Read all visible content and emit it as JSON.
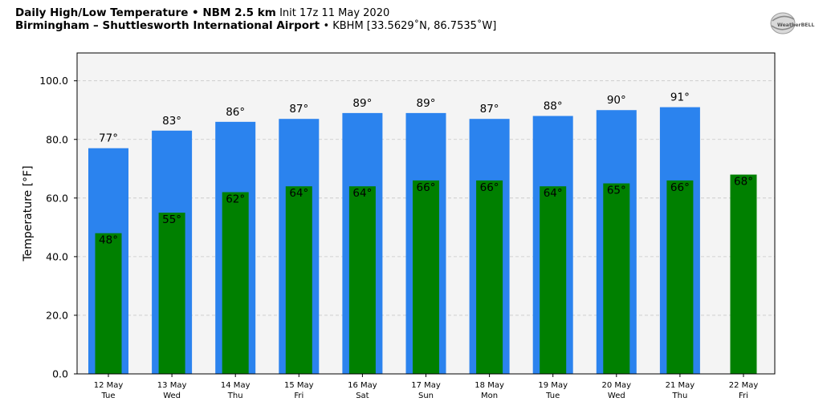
{
  "header": {
    "line1_bold": "Daily High/Low Temperature • NBM 2.5 km",
    "line1_rest": "Init 17z 11 May 2020",
    "line2_bold": "Birmingham – Shuttlesworth International Airport",
    "line2_rest": "• KBHM [33.5629˚N, 86.7535˚W]"
  },
  "logo": {
    "text": "WeatherBELL",
    "icon": "globe-swirl-icon"
  },
  "colors": {
    "high": "#2b83ee",
    "low": "#008000",
    "plot_bg": "#f4f4f4",
    "grid": "#c8c8c8"
  },
  "chart_data": {
    "type": "bar",
    "ylabel": "Temperature [°F]",
    "ylim": [
      0,
      109.5
    ],
    "yticks": [
      "0.0",
      "20.0",
      "40.0",
      "60.0",
      "80.0",
      "100.0"
    ],
    "ytick_values": [
      0,
      20,
      40,
      60,
      80,
      100
    ],
    "grid": true,
    "categories": [
      {
        "date": "12 May",
        "day": "Tue"
      },
      {
        "date": "13 May",
        "day": "Wed"
      },
      {
        "date": "14 May",
        "day": "Thu"
      },
      {
        "date": "15 May",
        "day": "Fri"
      },
      {
        "date": "16 May",
        "day": "Sat"
      },
      {
        "date": "17 May",
        "day": "Sun"
      },
      {
        "date": "18 May",
        "day": "Mon"
      },
      {
        "date": "19 May",
        "day": "Tue"
      },
      {
        "date": "20 May",
        "day": "Wed"
      },
      {
        "date": "21 May",
        "day": "Thu"
      },
      {
        "date": "22 May",
        "day": "Fri"
      }
    ],
    "series": [
      {
        "key": "high",
        "values": [
          77,
          83,
          86,
          87,
          89,
          89,
          87,
          88,
          90,
          91,
          null
        ],
        "labels": [
          "77°",
          "83°",
          "86°",
          "87°",
          "89°",
          "89°",
          "87°",
          "88°",
          "90°",
          "91°",
          null
        ]
      },
      {
        "key": "low",
        "values": [
          48,
          55,
          62,
          64,
          64,
          66,
          66,
          64,
          65,
          66,
          68
        ],
        "labels": [
          "48°",
          "55°",
          "62°",
          "64°",
          "64°",
          "66°",
          "66°",
          "64°",
          "65°",
          "66°",
          "68°"
        ]
      }
    ]
  }
}
